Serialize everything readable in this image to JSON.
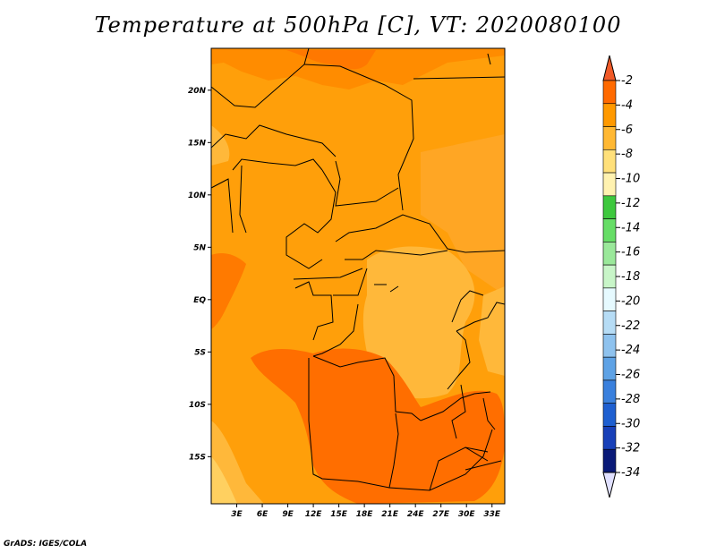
{
  "title": "Temperature at 500hPa [C], VT: 2020080100",
  "credit": "GrADS: IGES/COLA",
  "map": {
    "lon_range": [
      0,
      34.5
    ],
    "lat_range": [
      -19.5,
      24
    ],
    "lat_ticks": [
      {
        "value": 20,
        "label": "20N"
      },
      {
        "value": 15,
        "label": "15N"
      },
      {
        "value": 10,
        "label": "10N"
      },
      {
        "value": 5,
        "label": "5N"
      },
      {
        "value": 0,
        "label": "EQ"
      },
      {
        "value": -5,
        "label": "5S"
      },
      {
        "value": -10,
        "label": "10S"
      },
      {
        "value": -15,
        "label": "15S"
      }
    ],
    "lon_ticks": [
      {
        "value": 3,
        "label": "3E"
      },
      {
        "value": 6,
        "label": "6E"
      },
      {
        "value": 9,
        "label": "9E"
      },
      {
        "value": 12,
        "label": "12E"
      },
      {
        "value": 15,
        "label": "15E"
      },
      {
        "value": 18,
        "label": "18E"
      },
      {
        "value": 21,
        "label": "21E"
      },
      {
        "value": 24,
        "label": "24E"
      },
      {
        "value": 27,
        "label": "27E"
      },
      {
        "value": 30,
        "label": "30E"
      },
      {
        "value": 33,
        "label": "33E"
      }
    ]
  },
  "colorbar": {
    "labels": [
      "-2",
      "-4",
      "-6",
      "-8",
      "-10",
      "-12",
      "-14",
      "-16",
      "-18",
      "-20",
      "-22",
      "-24",
      "-26",
      "-28",
      "-30",
      "-32",
      "-34"
    ],
    "colors": [
      "#f05a28",
      "#ff6a00",
      "#ff9900",
      "#ffb833",
      "#ffe07a",
      "#fff2b0",
      "#3ec83e",
      "#66dd66",
      "#9ae89a",
      "#c8f5c8",
      "#e6faff",
      "#b6dcf5",
      "#8ec2ee",
      "#5ea2e5",
      "#3a80dd",
      "#1e5fd0",
      "#1840b8",
      "#0a1a78",
      "#e0e0ff"
    ]
  },
  "colors": {
    "ocean_warm": "#ff9900",
    "land_base": "#ff9f0a",
    "hot_core": "#ff6e00",
    "cool_band": "#ffb62e",
    "pale": "#ffd060",
    "border": "#000000"
  }
}
